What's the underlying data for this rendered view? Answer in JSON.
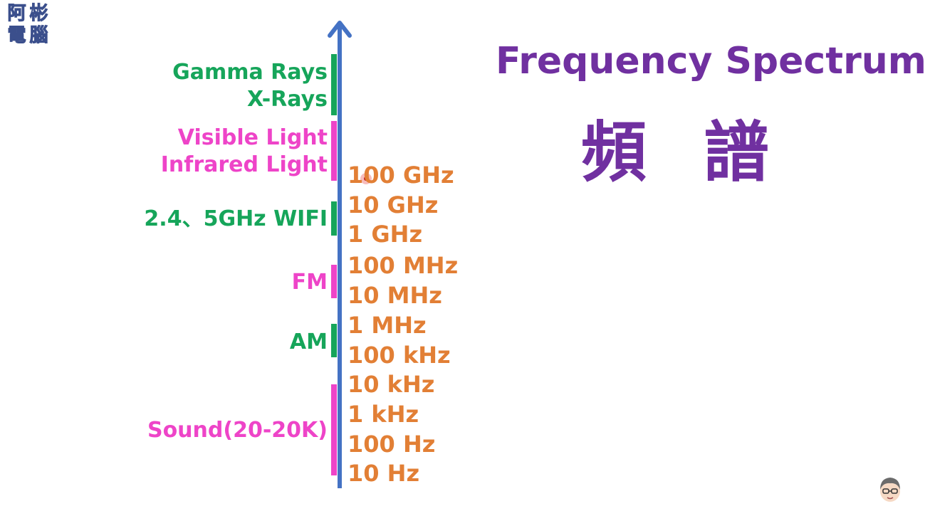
{
  "logo": {
    "chars": [
      "阿",
      "彬",
      "電",
      "腦"
    ]
  },
  "title": {
    "english": "Frequency Spectrum",
    "chinese": "頻 譜"
  },
  "bands": [
    {
      "lines": [
        "Gamma Rays",
        "X-Rays"
      ],
      "color": "#16a55a"
    },
    {
      "lines": [
        "Visible Light",
        "Infrared Light"
      ],
      "color": "#ee44c8"
    },
    {
      "lines": [
        "2.4、5GHz WIFI"
      ],
      "color": "#16a55a"
    },
    {
      "lines": [
        "FM"
      ],
      "color": "#ee44c8"
    },
    {
      "lines": [
        "AM"
      ],
      "color": "#16a55a"
    },
    {
      "lines": [
        "Sound(20-20K)"
      ],
      "color": "#ee44c8"
    }
  ],
  "frequencies": [
    "100 GHz",
    "10 GHz",
    "1 GHz",
    "100 MHz",
    "10 MHz",
    "1 MHz",
    "100 kHz",
    "10 kHz",
    "1 kHz",
    "100 Hz",
    "10 Hz"
  ],
  "colors": {
    "axis": "#4472c4",
    "title": "#7030a0",
    "frequency": "#e27f35",
    "green_band": "#16a55a",
    "pink_band": "#ee44c8"
  },
  "icons": {
    "logo": "logo-icon",
    "axis_arrow": "arrow-up-icon",
    "avatar": "avatar-icon",
    "pointer": "cursor-dot-icon"
  }
}
